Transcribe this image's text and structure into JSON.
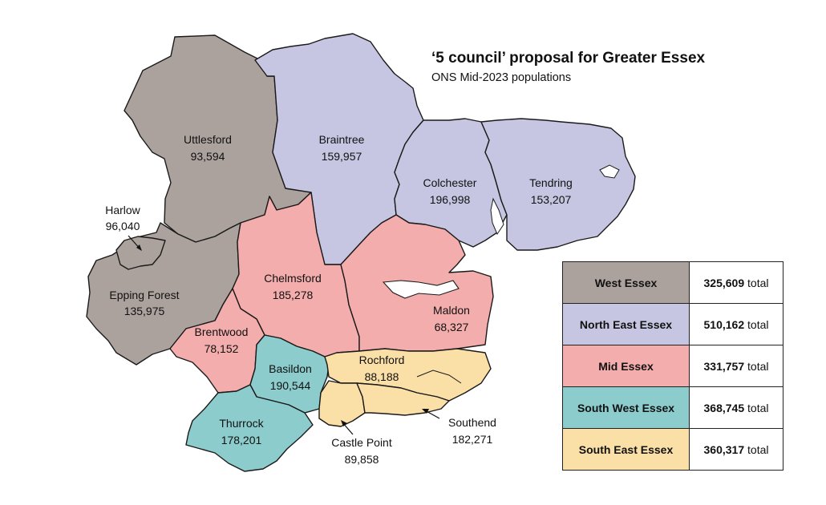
{
  "title": "‘5 council’ proposal for Greater Essex",
  "subtitle": "ONS Mid-2023 populations",
  "colors": {
    "west": "#aba29d",
    "north_east": "#c6c6e2",
    "mid": "#f4adad",
    "south_west": "#8ccccc",
    "south_east": "#fadfa7"
  },
  "districts": {
    "uttlesford": {
      "name": "Uttlesford",
      "pop": "93,594"
    },
    "harlow": {
      "name": "Harlow",
      "pop": "96,040"
    },
    "epping": {
      "name": "Epping Forest",
      "pop": "135,975"
    },
    "braintree": {
      "name": "Braintree",
      "pop": "159,957"
    },
    "colchester": {
      "name": "Colchester",
      "pop": "196,998"
    },
    "tendring": {
      "name": "Tendring",
      "pop": "153,207"
    },
    "chelmsford": {
      "name": "Chelmsford",
      "pop": "185,278"
    },
    "maldon": {
      "name": "Maldon",
      "pop": "68,327"
    },
    "brentwood": {
      "name": "Brentwood",
      "pop": "78,152"
    },
    "basildon": {
      "name": "Basildon",
      "pop": "190,544"
    },
    "thurrock": {
      "name": "Thurrock",
      "pop": "178,201"
    },
    "rochford": {
      "name": "Rochford",
      "pop": "88,188"
    },
    "castle_point": {
      "name": "Castle Point",
      "pop": "89,858"
    },
    "southend": {
      "name": "Southend",
      "pop": "182,271"
    }
  },
  "legend": [
    {
      "name": "West Essex",
      "value": "325,609",
      "suffix": "total",
      "color": "#aba29d"
    },
    {
      "name": "North East Essex",
      "value": "510,162",
      "suffix": "total",
      "color": "#c6c6e2"
    },
    {
      "name": "Mid Essex",
      "value": "331,757",
      "suffix": "total",
      "color": "#f4adad"
    },
    {
      "name": "South West Essex",
      "value": "368,745",
      "suffix": "total",
      "color": "#8ccccc"
    },
    {
      "name": "South East Essex",
      "value": "360,317",
      "suffix": "total",
      "color": "#fadfa7"
    }
  ]
}
